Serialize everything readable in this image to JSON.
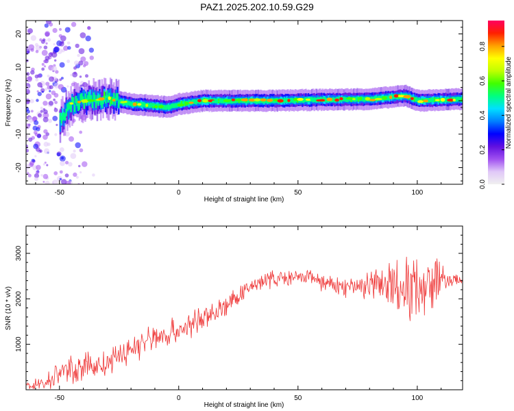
{
  "title": "PAZ1.2025.202.10.59.G29",
  "chart_data": [
    {
      "type": "heatmap",
      "xlabel": "Height of straight line (km)",
      "ylabel": "Frequency (Hz)",
      "xlim": [
        -64,
        119
      ],
      "ylim": [
        -25,
        24
      ],
      "x_ticks": [
        -50,
        0,
        50,
        100
      ],
      "y_ticks": [
        -20,
        -10,
        0,
        10,
        20
      ],
      "colorbar": {
        "label": "Normalized spectral amplitude",
        "range": [
          0,
          0.95
        ],
        "ticks": [
          0.0,
          0.2,
          0.4,
          0.6,
          0.8
        ],
        "colors": [
          "#f0f0f0",
          "#e0c8f8",
          "#a050f0",
          "#6010e0",
          "#0000ff",
          "#0080ff",
          "#00e0ff",
          "#00ff80",
          "#40ff00",
          "#c0ff00",
          "#ffff00",
          "#ffa000",
          "#ff2000",
          "#ff0060"
        ]
      },
      "ridge": [
        {
          "x": -60,
          "f": -3
        },
        {
          "x": -50,
          "f": -6
        },
        {
          "x": -45,
          "f": -1
        },
        {
          "x": -40,
          "f": 0
        },
        {
          "x": -30,
          "f": 0.5
        },
        {
          "x": -20,
          "f": -1
        },
        {
          "x": -10,
          "f": -1.5
        },
        {
          "x": -5,
          "f": -2
        },
        {
          "x": 0,
          "f": -1
        },
        {
          "x": 10,
          "f": 0
        },
        {
          "x": 20,
          "f": 0
        },
        {
          "x": 40,
          "f": 0
        },
        {
          "x": 60,
          "f": 0.3
        },
        {
          "x": 80,
          "f": 0.5
        },
        {
          "x": 95,
          "f": 1.5
        },
        {
          "x": 100,
          "f": 0
        },
        {
          "x": 119,
          "f": 0.5
        }
      ]
    },
    {
      "type": "line",
      "xlabel": "Height of straight line (km)",
      "ylabel": "SNR (10 * v/v)",
      "xlim": [
        -64,
        119
      ],
      "ylim": [
        0,
        3600
      ],
      "x_ticks": [
        -50,
        0,
        50,
        100
      ],
      "y_ticks": [
        1000,
        2000,
        3000
      ],
      "series": [
        {
          "color": "#ee3333",
          "trend": [
            {
              "x": -64,
              "y": 100
            },
            {
              "x": -55,
              "y": 150
            },
            {
              "x": -50,
              "y": 400
            },
            {
              "x": -40,
              "y": 500
            },
            {
              "x": -30,
              "y": 550
            },
            {
              "x": -20,
              "y": 900
            },
            {
              "x": -10,
              "y": 1150
            },
            {
              "x": 0,
              "y": 1300
            },
            {
              "x": 10,
              "y": 1550
            },
            {
              "x": 20,
              "y": 1850
            },
            {
              "x": 28,
              "y": 2150
            },
            {
              "x": 32,
              "y": 2350
            },
            {
              "x": 40,
              "y": 2450
            },
            {
              "x": 50,
              "y": 2450
            },
            {
              "x": 56,
              "y": 2500
            },
            {
              "x": 60,
              "y": 2350
            },
            {
              "x": 70,
              "y": 2250
            },
            {
              "x": 80,
              "y": 2300
            },
            {
              "x": 90,
              "y": 2250
            },
            {
              "x": 100,
              "y": 2300
            },
            {
              "x": 110,
              "y": 2400
            },
            {
              "x": 119,
              "y": 2400
            }
          ],
          "noise": [
            {
              "x": -64,
              "amp": 120
            },
            {
              "x": -50,
              "amp": 350
            },
            {
              "x": -20,
              "amp": 400
            },
            {
              "x": 0,
              "amp": 400
            },
            {
              "x": 30,
              "amp": 250
            },
            {
              "x": 55,
              "amp": 200
            },
            {
              "x": 75,
              "amp": 300
            },
            {
              "x": 85,
              "amp": 800
            },
            {
              "x": 100,
              "amp": 900
            },
            {
              "x": 110,
              "amp": 700
            },
            {
              "x": 112,
              "amp": 200
            },
            {
              "x": 119,
              "amp": 150
            }
          ]
        }
      ]
    }
  ]
}
